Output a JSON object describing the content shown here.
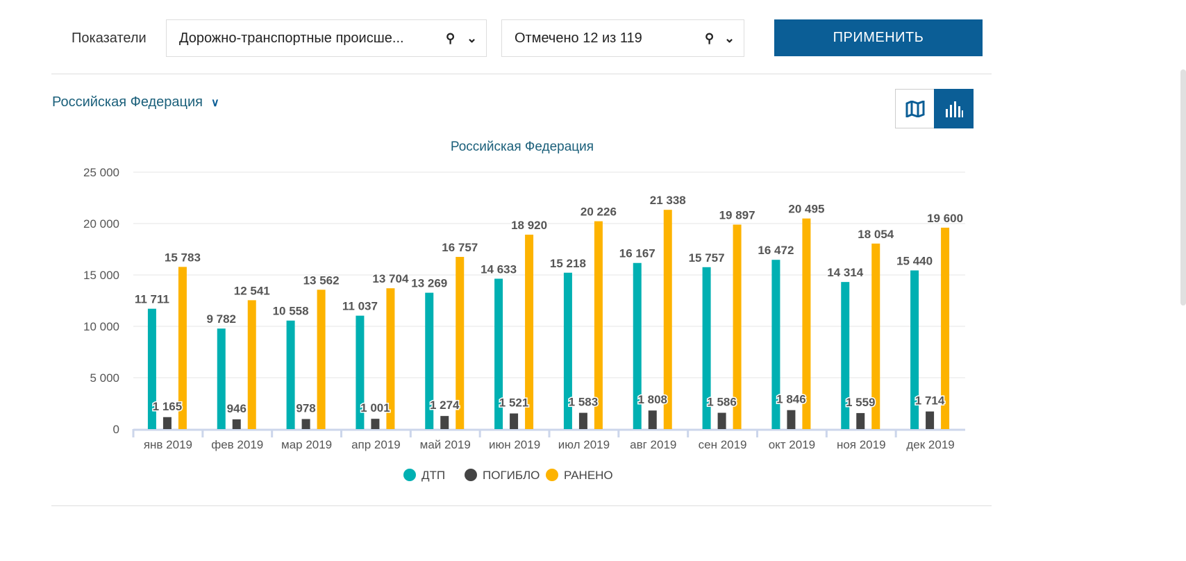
{
  "filters": {
    "label": "Показатели",
    "indicator": "Дорожно-транспортные происше...",
    "selected": "Отмечено 12 из 119",
    "apply": "ПРИМЕНИТЬ"
  },
  "region": "Российская Федерация",
  "colors": {
    "dtp": "#00b0b2",
    "killed": "#444444",
    "injured": "#fdb300",
    "accent": "#0b5e96"
  },
  "chart_data": {
    "type": "bar",
    "title": "Российская Федерация",
    "categories": [
      "янв 2019",
      "фев 2019",
      "мар 2019",
      "апр 2019",
      "май 2019",
      "июн 2019",
      "июл 2019",
      "авг 2019",
      "сен 2019",
      "окт 2019",
      "ноя 2019",
      "дек 2019"
    ],
    "series": [
      {
        "name": "ДТП",
        "values": [
          11711,
          9782,
          10558,
          11037,
          13269,
          14633,
          15218,
          16167,
          15757,
          16472,
          14314,
          15440
        ]
      },
      {
        "name": "ПОГИБЛО",
        "values": [
          1165,
          946,
          978,
          1001,
          1274,
          1521,
          1583,
          1808,
          1586,
          1846,
          1559,
          1714
        ]
      },
      {
        "name": "РАНЕНО",
        "values": [
          15783,
          12541,
          13562,
          13704,
          16757,
          18920,
          20226,
          21338,
          19897,
          20495,
          18054,
          19600
        ]
      }
    ],
    "yticks": [
      "0",
      "5 000",
      "10 000",
      "15 000",
      "20 000",
      "25 000"
    ],
    "ylim": [
      0,
      25000
    ],
    "grid": true,
    "legend": "bottom"
  }
}
